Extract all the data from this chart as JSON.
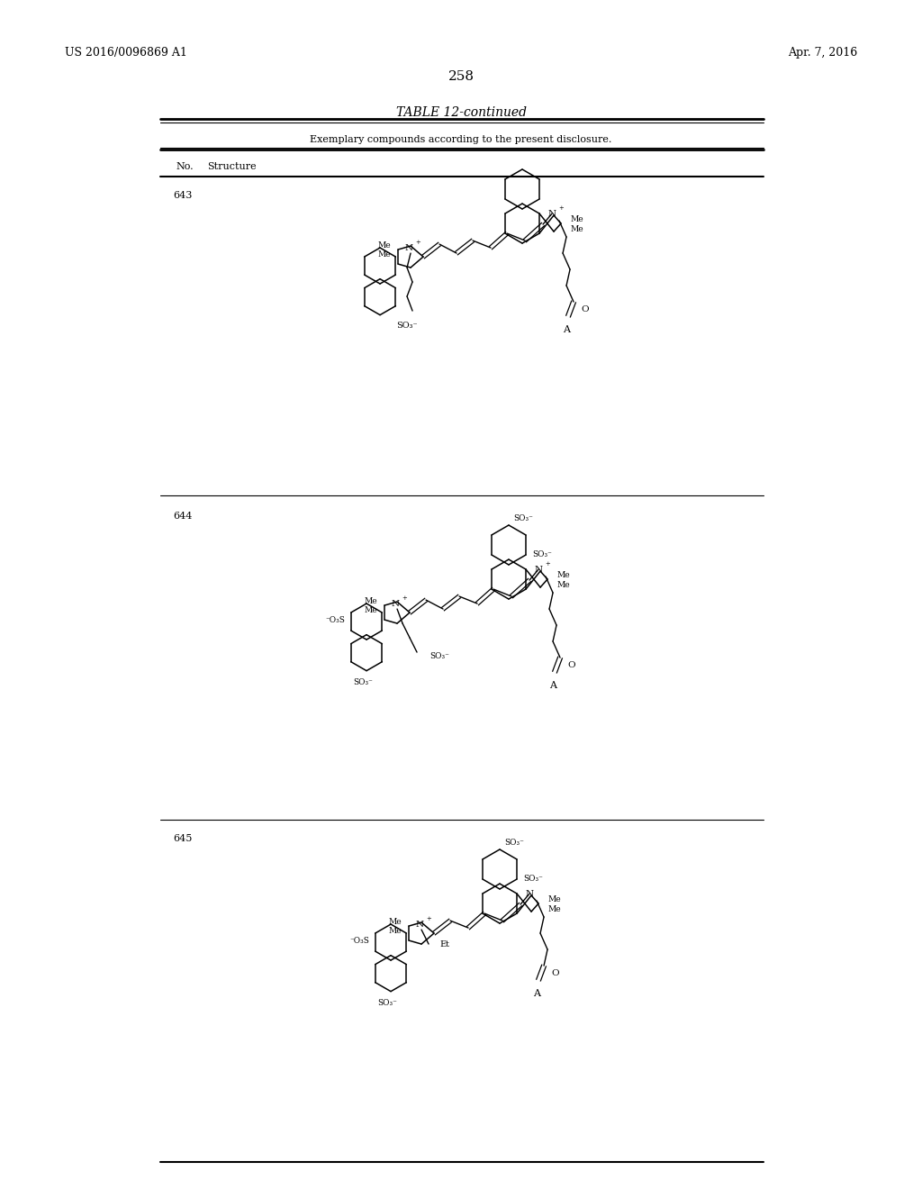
{
  "page_width": 10.24,
  "page_height": 13.2,
  "background_color": "#ffffff",
  "header_left": "US 2016/0096869 A1",
  "header_right": "Apr. 7, 2016",
  "page_number": "258",
  "table_title": "TABLE 12-continued",
  "table_subtitle": "Exemplary compounds according to the present disclosure.",
  "col_headers": [
    "No.",
    "Structure"
  ],
  "font_size_header": 9,
  "font_size_title": 10,
  "font_size_subtitle": 8,
  "font_size_col": 8,
  "font_size_number": 8
}
